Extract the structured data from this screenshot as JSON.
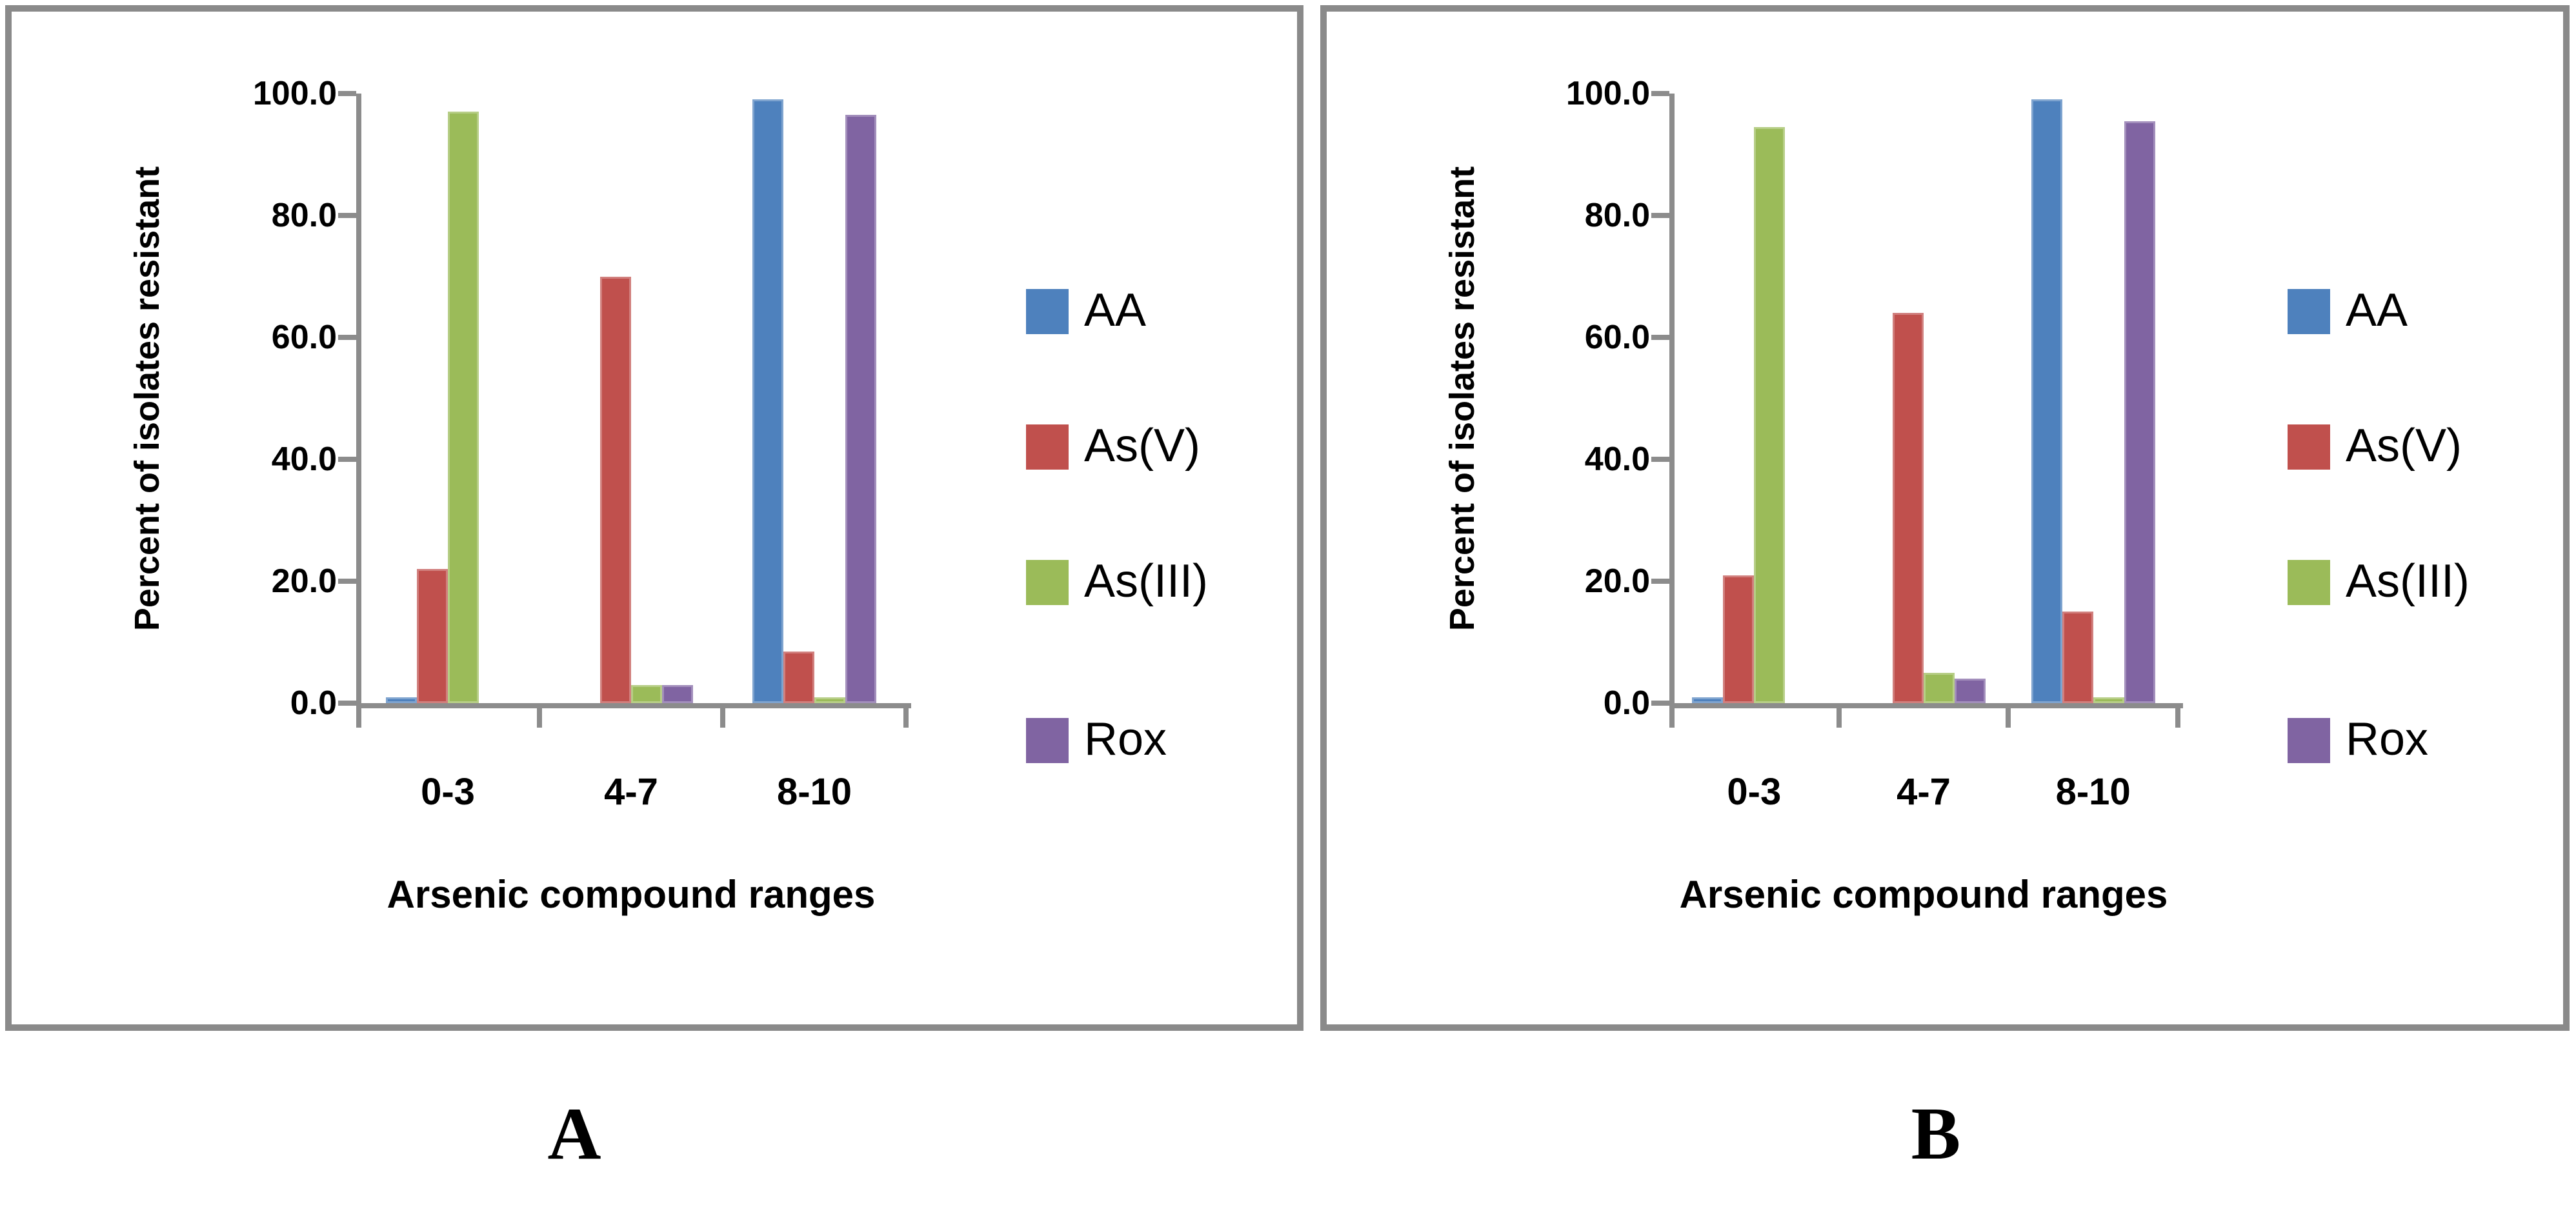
{
  "figure_type": "two-panel grouped bar chart",
  "colors": {
    "axis": "#8C8C8C",
    "panel_border": "#8A8A8A",
    "text": "#000000",
    "series_blue": "#4E81BD",
    "series_red": "#C0504D",
    "series_green": "#9BBB59",
    "series_purple": "#8064A2"
  },
  "chart_data": [
    {
      "type": "bar",
      "panel_label": "A",
      "categories": [
        "0-3",
        "4-7",
        "8-10"
      ],
      "series": [
        {
          "name": "AA",
          "color": "#4E81BD",
          "values": [
            1,
            0,
            99
          ]
        },
        {
          "name": "As(V)",
          "color": "#C0504D",
          "values": [
            22,
            70,
            8.5
          ]
        },
        {
          "name": "As(III)",
          "color": "#9BBB59",
          "values": [
            97,
            3,
            1
          ]
        },
        {
          "name": "Rox",
          "color": "#8064A2",
          "values": [
            0,
            3,
            96.5
          ]
        }
      ],
      "xlabel": "Arsenic compound ranges",
      "ylabel": "Percent of isolates resistant",
      "ylim": [
        0,
        100
      ],
      "yticks": [
        100,
        80,
        60,
        40,
        20,
        0
      ],
      "ytick_labels": [
        "100.0",
        "80.0",
        "60.0",
        "40.0",
        "20.0",
        "0.0"
      ],
      "legend_position": "right",
      "grid": false
    },
    {
      "type": "bar",
      "panel_label": "B",
      "categories": [
        "0-3",
        "4-7",
        "8-10"
      ],
      "series": [
        {
          "name": "AA",
          "color": "#4E81BD",
          "values": [
            1,
            0,
            99
          ]
        },
        {
          "name": "As(V)",
          "color": "#C0504D",
          "values": [
            21,
            64,
            15
          ]
        },
        {
          "name": "As(III)",
          "color": "#9BBB59",
          "values": [
            94.5,
            5,
            1
          ]
        },
        {
          "name": "Rox",
          "color": "#8064A2",
          "values": [
            0,
            4,
            95.5
          ]
        }
      ],
      "xlabel": "Arsenic compound ranges",
      "ylabel": "Percent of isolates resistant",
      "ylim": [
        0,
        100
      ],
      "yticks": [
        100,
        80,
        60,
        40,
        20,
        0
      ],
      "ytick_labels": [
        "100.0",
        "80.0",
        "60.0",
        "40.0",
        "20.0",
        "0.0"
      ],
      "legend_position": "right",
      "grid": false
    }
  ]
}
